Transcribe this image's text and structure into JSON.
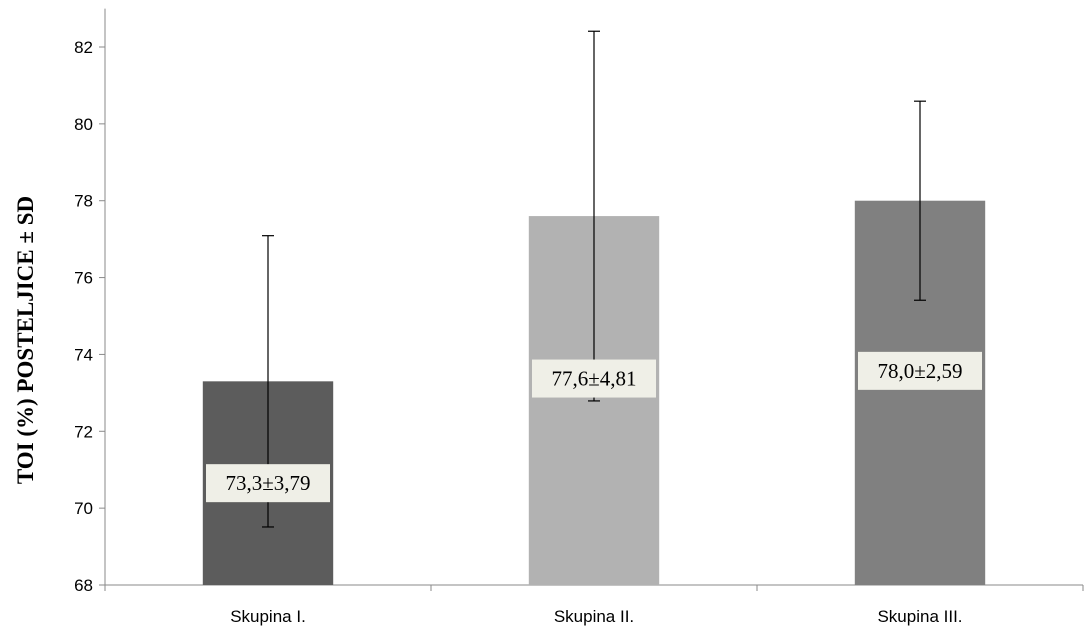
{
  "chart_data": {
    "type": "bar",
    "title": "",
    "xlabel": "",
    "ylabel": "TOI (%) POSTELJICE ± SD",
    "ylim": [
      68,
      83
    ],
    "yticks": [
      68,
      70,
      72,
      74,
      76,
      78,
      80,
      82
    ],
    "grid": false,
    "legend": "none",
    "categories": [
      "Skupina I.",
      "Skupina II.",
      "Skupina III."
    ],
    "values": [
      73.3,
      77.6,
      78.0
    ],
    "sd": [
      3.79,
      4.81,
      2.59
    ],
    "data_labels": [
      "73,3±3,79",
      "77,6±4,81",
      "78,0±2,59"
    ],
    "colors": [
      "#5c5c5c",
      "#b2b2b2",
      "#808080"
    ],
    "label_box_color": "#efefe7"
  }
}
